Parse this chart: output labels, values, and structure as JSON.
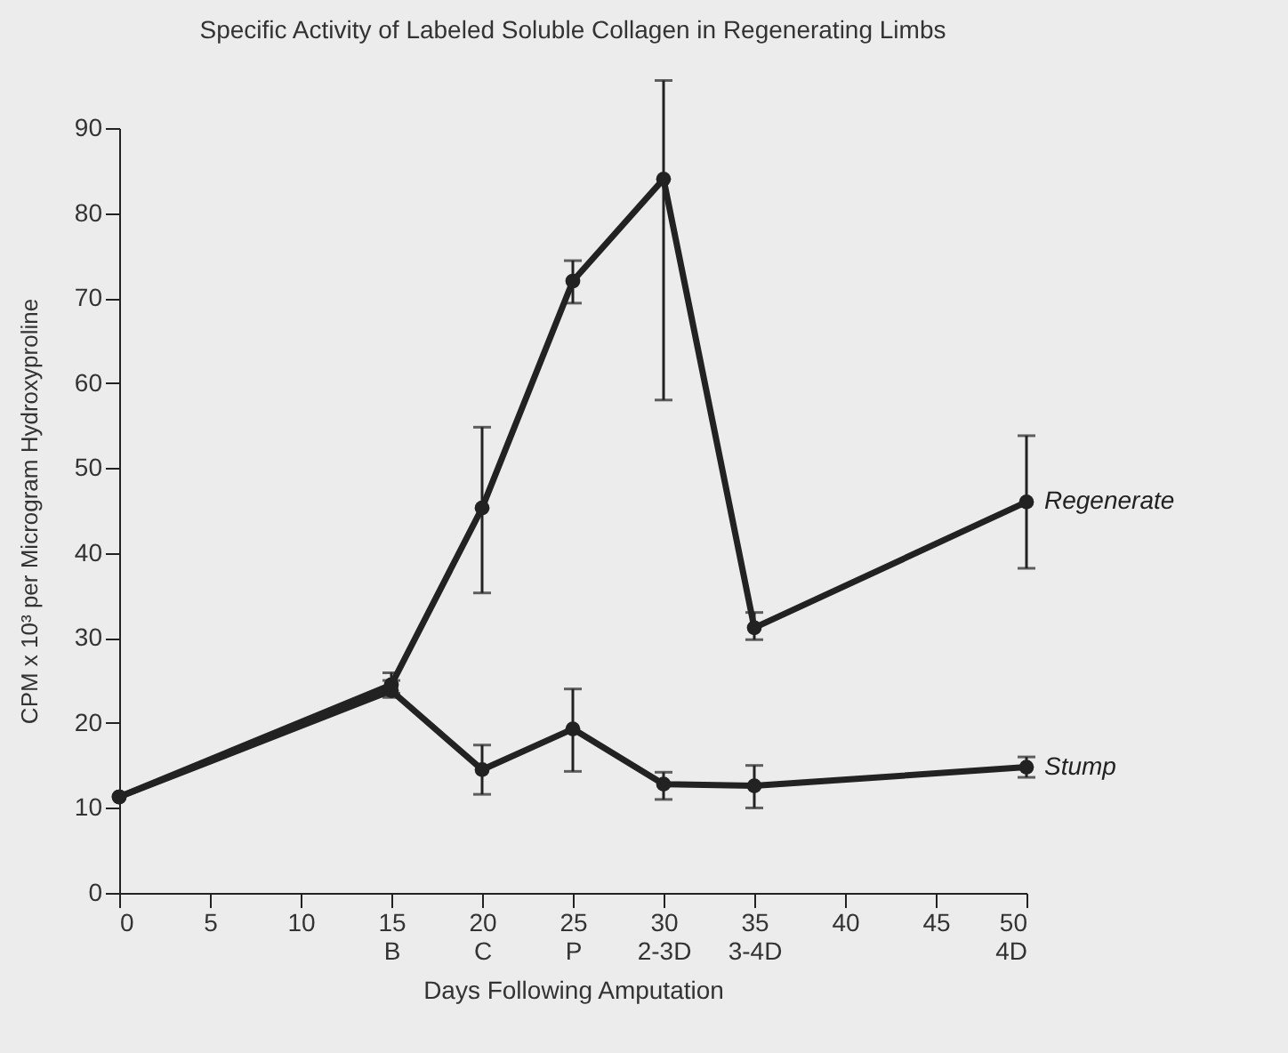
{
  "chart_data": {
    "type": "line",
    "title": "Specific Activity of Labeled Soluble Collagen in Regenerating Limbs",
    "xlabel": "Days Following Amputation",
    "ylabel": "CPM x 10³ per Microgram Hydroxyproline",
    "x": [
      0,
      15,
      20,
      25,
      30,
      35,
      50
    ],
    "series": [
      {
        "name": "Regenerate",
        "color": "#222222",
        "values": [
          11.3,
          24.5,
          45.3,
          72,
          84,
          31.2,
          46
        ],
        "errors": [
          null,
          [
            23.5,
            25.9
          ],
          [
            35.3,
            54.8
          ],
          [
            69.4,
            74.4
          ],
          [
            58,
            95.6
          ],
          [
            29.8,
            33
          ],
          [
            38.2,
            53.8
          ]
        ]
      },
      {
        "name": "Stump",
        "color": "#222222",
        "values": [
          11.3,
          23.8,
          14.5,
          19.3,
          12.8,
          12.6,
          14.8
        ],
        "errors": [
          null,
          [
            23,
            25
          ],
          [
            11.6,
            17.4
          ],
          [
            14.3,
            24
          ],
          [
            11,
            14.2
          ],
          [
            10,
            15
          ],
          [
            13.6,
            16
          ]
        ]
      }
    ],
    "xlim": [
      0,
      50
    ],
    "xticks": [
      0,
      5,
      10,
      {
        "value": 15,
        "label": "15\nB"
      },
      {
        "value": 20,
        "label": "20\nC"
      },
      {
        "value": 25,
        "label": "25\nP"
      },
      {
        "value": 30,
        "label": "30\n2-3D"
      },
      {
        "value": 35,
        "label": "35\n3-4D"
      },
      40,
      45,
      {
        "value": 50,
        "label": "50\n4D"
      }
    ],
    "ylim": [
      0,
      90
    ],
    "yticks": [
      0,
      10,
      20,
      30,
      40,
      50,
      60,
      70,
      80,
      90
    ],
    "grid": false,
    "legend": false,
    "marker": "circle",
    "line_style": "solid"
  }
}
